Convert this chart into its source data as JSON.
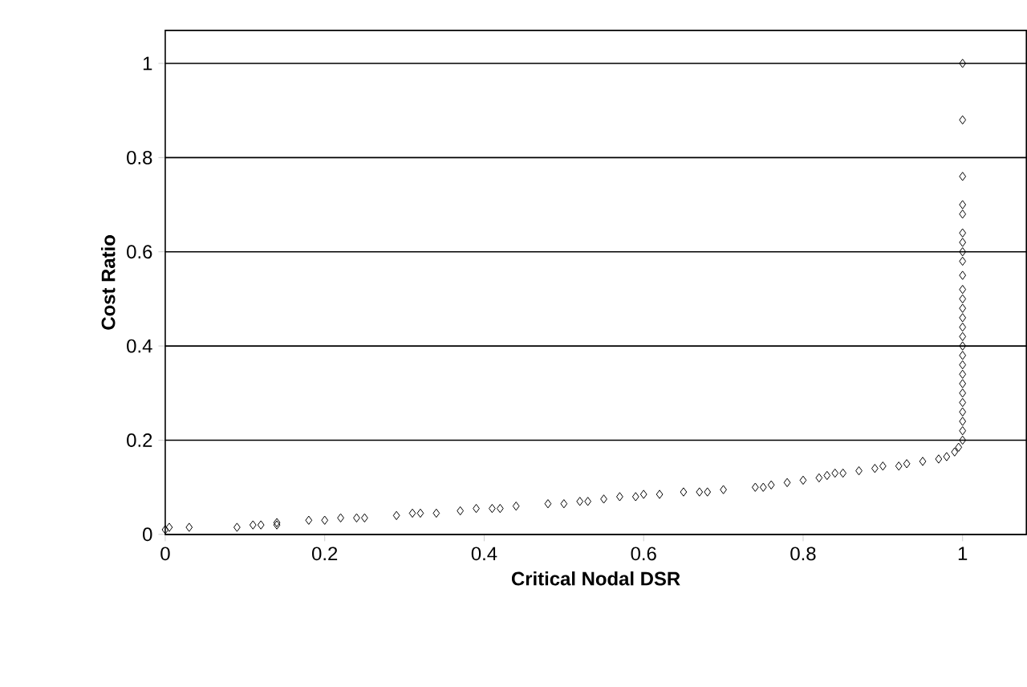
{
  "chart_data": {
    "type": "scatter",
    "xlabel": "Critical Nodal DSR",
    "ylabel": "Cost Ratio",
    "x": [
      0.0,
      0.005,
      0.03,
      0.09,
      0.11,
      0.12,
      0.14,
      0.14,
      0.18,
      0.2,
      0.22,
      0.24,
      0.25,
      0.29,
      0.31,
      0.32,
      0.34,
      0.37,
      0.39,
      0.41,
      0.42,
      0.44,
      0.48,
      0.5,
      0.52,
      0.53,
      0.55,
      0.57,
      0.59,
      0.6,
      0.62,
      0.65,
      0.67,
      0.68,
      0.7,
      0.74,
      0.75,
      0.76,
      0.78,
      0.8,
      0.82,
      0.83,
      0.84,
      0.85,
      0.87,
      0.89,
      0.9,
      0.92,
      0.93,
      0.95,
      0.97,
      0.98,
      0.99,
      0.995,
      1,
      1,
      1,
      1,
      1,
      1,
      1,
      1,
      1,
      1,
      1,
      1,
      1,
      1,
      1,
      1,
      1,
      1,
      1,
      1,
      1,
      1,
      1,
      1,
      1,
      1,
      1
    ],
    "values": [
      0.01,
      0.015,
      0.015,
      0.015,
      0.02,
      0.02,
      0.025,
      0.02,
      0.03,
      0.03,
      0.035,
      0.035,
      0.035,
      0.04,
      0.045,
      0.045,
      0.045,
      0.05,
      0.055,
      0.055,
      0.055,
      0.06,
      0.065,
      0.065,
      0.07,
      0.07,
      0.075,
      0.08,
      0.08,
      0.085,
      0.085,
      0.09,
      0.09,
      0.09,
      0.095,
      0.1,
      0.1,
      0.105,
      0.11,
      0.115,
      0.12,
      0.125,
      0.13,
      0.13,
      0.135,
      0.14,
      0.145,
      0.145,
      0.15,
      0.155,
      0.16,
      0.165,
      0.175,
      0.185,
      0.2,
      0.22,
      0.24,
      0.26,
      0.28,
      0.3,
      0.32,
      0.34,
      0.36,
      0.38,
      0.4,
      0.42,
      0.44,
      0.46,
      0.48,
      0.5,
      0.52,
      0.55,
      0.58,
      0.6,
      0.62,
      0.64,
      0.68,
      0.7,
      0.76,
      0.88,
      1.0
    ],
    "color": "#000000",
    "marker": "diamond",
    "xlim": [
      0,
      1.08
    ],
    "ylim": [
      0,
      1.07
    ],
    "xticks": [
      {
        "value": 0,
        "label": "0"
      },
      0.2,
      0.4,
      0.6,
      0.8,
      1
    ],
    "yticks": [
      {
        "value": 0,
        "label": "0"
      },
      0.2,
      0.4,
      0.6,
      0.8,
      1
    ],
    "grid": "y"
  }
}
